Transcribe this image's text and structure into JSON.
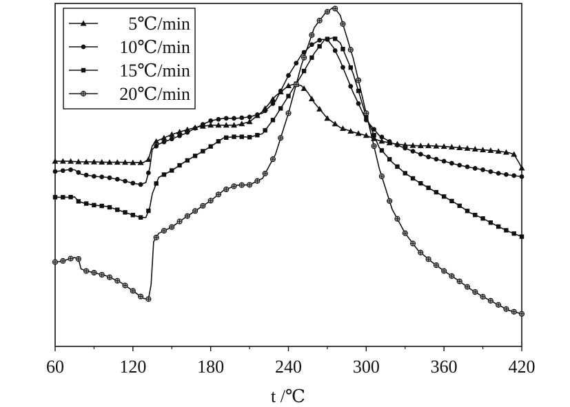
{
  "chart_data": {
    "type": "line",
    "title": "",
    "xlabel": "t /℃",
    "ylabel": "",
    "xlim": [
      60,
      420
    ],
    "ylim": [
      0,
      100
    ],
    "x_ticks": [
      60,
      120,
      180,
      240,
      300,
      360,
      420
    ],
    "y_ticks_labeled": false,
    "grid": false,
    "legend_position": "top-left",
    "marker_interval": 6,
    "series": [
      {
        "name": "5℃/min",
        "marker": "triangle",
        "color": "#111111",
        "points": [
          [
            60,
            54
          ],
          [
            70,
            54
          ],
          [
            80,
            53.8
          ],
          [
            90,
            53.8
          ],
          [
            100,
            53.7
          ],
          [
            110,
            53.7
          ],
          [
            120,
            53.6
          ],
          [
            128,
            53.6
          ],
          [
            132,
            54.5
          ],
          [
            135,
            58.5
          ],
          [
            138,
            59.8
          ],
          [
            150,
            61.8
          ],
          [
            160,
            63
          ],
          [
            170,
            64
          ],
          [
            180,
            64.5
          ],
          [
            190,
            64.5
          ],
          [
            200,
            64.5
          ],
          [
            210,
            65.5
          ],
          [
            220,
            68.5
          ],
          [
            230,
            73
          ],
          [
            240,
            76
          ],
          [
            245,
            76.5
          ],
          [
            250,
            76
          ],
          [
            255,
            74
          ],
          [
            260,
            71
          ],
          [
            270,
            66.5
          ],
          [
            280,
            63.8
          ],
          [
            290,
            62.5
          ],
          [
            300,
            61.5
          ],
          [
            310,
            60
          ],
          [
            320,
            59.2
          ],
          [
            330,
            58.7
          ],
          [
            340,
            58.5
          ],
          [
            350,
            58.5
          ],
          [
            360,
            58.3
          ],
          [
            370,
            58
          ],
          [
            380,
            57.7
          ],
          [
            390,
            57.3
          ],
          [
            400,
            57
          ],
          [
            410,
            56.5
          ],
          [
            414,
            56
          ],
          [
            418,
            53.5
          ],
          [
            420,
            52
          ]
        ]
      },
      {
        "name": "10℃/min",
        "marker": "circle",
        "color": "#111111",
        "points": [
          [
            60,
            51
          ],
          [
            65,
            51.2
          ],
          [
            70,
            51.5
          ],
          [
            75,
            51.5
          ],
          [
            80,
            50.2
          ],
          [
            90,
            49.6
          ],
          [
            100,
            49.3
          ],
          [
            110,
            48.6
          ],
          [
            120,
            47.6
          ],
          [
            126,
            47.2
          ],
          [
            130,
            47.8
          ],
          [
            133,
            52
          ],
          [
            135,
            57.5
          ],
          [
            140,
            59
          ],
          [
            150,
            60.5
          ],
          [
            160,
            62
          ],
          [
            170,
            64
          ],
          [
            180,
            65.8
          ],
          [
            190,
            66.5
          ],
          [
            200,
            66.5
          ],
          [
            210,
            66.9
          ],
          [
            220,
            68
          ],
          [
            230,
            71.5
          ],
          [
            240,
            79
          ],
          [
            250,
            85
          ],
          [
            258,
            88
          ],
          [
            265,
            89.5
          ],
          [
            270,
            89.5
          ],
          [
            275,
            87
          ],
          [
            280,
            83.2
          ],
          [
            290,
            74
          ],
          [
            300,
            66
          ],
          [
            310,
            61.5
          ],
          [
            320,
            59.3
          ],
          [
            330,
            57.8
          ],
          [
            340,
            56.3
          ],
          [
            350,
            55
          ],
          [
            360,
            54
          ],
          [
            370,
            53
          ],
          [
            380,
            52.2
          ],
          [
            390,
            51.5
          ],
          [
            400,
            50.6
          ],
          [
            410,
            50
          ],
          [
            420,
            49.5
          ]
        ]
      },
      {
        "name": "15℃/min",
        "marker": "square",
        "color": "#111111",
        "points": [
          [
            60,
            43.5
          ],
          [
            70,
            43.5
          ],
          [
            75,
            43.6
          ],
          [
            78,
            42.3
          ],
          [
            82,
            41.8
          ],
          [
            90,
            41.2
          ],
          [
            100,
            40.8
          ],
          [
            110,
            39.6
          ],
          [
            120,
            38.3
          ],
          [
            126,
            37.6
          ],
          [
            130,
            37.6
          ],
          [
            133,
            40.5
          ],
          [
            135,
            44.5
          ],
          [
            138,
            47.5
          ],
          [
            140,
            49.3
          ],
          [
            150,
            51.3
          ],
          [
            160,
            53.8
          ],
          [
            170,
            56
          ],
          [
            180,
            58.3
          ],
          [
            190,
            60.8
          ],
          [
            200,
            61.2
          ],
          [
            210,
            61
          ],
          [
            220,
            62
          ],
          [
            230,
            67
          ],
          [
            240,
            73
          ],
          [
            250,
            79
          ],
          [
            260,
            85.5
          ],
          [
            268,
            89.5
          ],
          [
            275,
            90
          ],
          [
            280,
            88.5
          ],
          [
            290,
            79.5
          ],
          [
            300,
            67
          ],
          [
            310,
            58
          ],
          [
            320,
            53.7
          ],
          [
            330,
            50.5
          ],
          [
            340,
            48
          ],
          [
            350,
            45.8
          ],
          [
            360,
            43.7
          ],
          [
            370,
            41.5
          ],
          [
            380,
            39
          ],
          [
            390,
            37.3
          ],
          [
            400,
            35.3
          ],
          [
            410,
            33.5
          ],
          [
            420,
            32
          ]
        ]
      },
      {
        "name": "20℃/min",
        "marker": "circle-crossed",
        "color": "#111111",
        "points": [
          [
            60,
            24.6
          ],
          [
            65,
            24.8
          ],
          [
            70,
            25.4
          ],
          [
            75,
            25.9
          ],
          [
            78,
            25.5
          ],
          [
            80,
            22.6
          ],
          [
            84,
            22
          ],
          [
            90,
            21.5
          ],
          [
            100,
            20.5
          ],
          [
            110,
            18.8
          ],
          [
            120,
            16.2
          ],
          [
            128,
            14
          ],
          [
            132,
            13.8
          ],
          [
            134,
            18
          ],
          [
            136,
            30.5
          ],
          [
            140,
            33
          ],
          [
            150,
            34.8
          ],
          [
            160,
            37.5
          ],
          [
            170,
            40
          ],
          [
            180,
            42.5
          ],
          [
            190,
            45.5
          ],
          [
            200,
            47
          ],
          [
            210,
            47.1
          ],
          [
            220,
            49
          ],
          [
            230,
            56
          ],
          [
            240,
            68
          ],
          [
            250,
            82
          ],
          [
            260,
            93
          ],
          [
            268,
            97
          ],
          [
            275,
            99
          ],
          [
            280,
            96.5
          ],
          [
            290,
            84
          ],
          [
            300,
            68
          ],
          [
            310,
            52
          ],
          [
            320,
            40
          ],
          [
            330,
            33
          ],
          [
            340,
            28
          ],
          [
            350,
            24.8
          ],
          [
            360,
            22
          ],
          [
            370,
            19.5
          ],
          [
            380,
            16.8
          ],
          [
            390,
            14.5
          ],
          [
            400,
            12.5
          ],
          [
            410,
            10.5
          ],
          [
            420,
            9.5
          ]
        ]
      }
    ]
  }
}
